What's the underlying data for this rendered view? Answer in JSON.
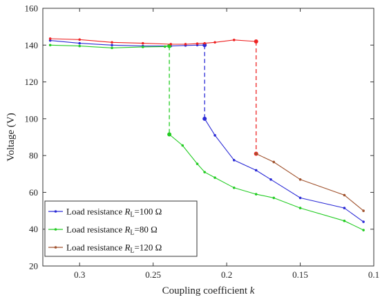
{
  "chart_data": {
    "type": "line",
    "xlabel_main": "Coupling coefficient",
    "xlabel_var": "k",
    "ylabel": "Voltage (V)",
    "xlim": [
      0.325,
      0.1
    ],
    "ylim": [
      20,
      160
    ],
    "x_ticks": [
      0.3,
      0.25,
      0.2,
      0.15,
      0.1
    ],
    "x_tick_labels": [
      "0.3",
      "0.25",
      "0.2",
      "0.15",
      "0.1"
    ],
    "y_ticks": [
      20,
      40,
      60,
      80,
      100,
      120,
      140,
      160
    ],
    "y_tick_labels": [
      "20",
      "40",
      "60",
      "80",
      "100",
      "120",
      "140",
      "160"
    ],
    "grid": false,
    "legend_placement": "bottom-left",
    "series": [
      {
        "name_prefix": "Load resistance ",
        "name_var": "R",
        "name_sub": "L",
        "name_suffix": "=100 Ω",
        "color": "#2b2bd6",
        "upper": {
          "x": [
            0.32,
            0.3,
            0.278,
            0.257,
            0.238,
            0.228,
            0.22,
            0.215
          ],
          "y": [
            142.5,
            141,
            140,
            139.5,
            139.5,
            139.8,
            140,
            140
          ]
        },
        "jump": {
          "x": 0.215,
          "y_from": 140,
          "y_to": 100
        },
        "lower": {
          "x": [
            0.215,
            0.208,
            0.195,
            0.18,
            0.17,
            0.15,
            0.12,
            0.107
          ],
          "y": [
            100,
            91,
            77.5,
            72,
            67,
            57,
            51.5,
            44
          ]
        }
      },
      {
        "name_prefix": "Load resistance ",
        "name_var": "R",
        "name_sub": "L",
        "name_suffix": "=80 Ω",
        "color": "#22cc22",
        "upper": {
          "x": [
            0.32,
            0.3,
            0.278,
            0.257,
            0.242,
            0.239
          ],
          "y": [
            140,
            139.5,
            138.5,
            139,
            139.2,
            139.5
          ]
        },
        "jump": {
          "x": 0.239,
          "y_from": 139.5,
          "y_to": 91.5
        },
        "lower": {
          "x": [
            0.239,
            0.23,
            0.22,
            0.215,
            0.208,
            0.195,
            0.18,
            0.168,
            0.15,
            0.12,
            0.107
          ],
          "y": [
            91.5,
            85.5,
            75.5,
            71,
            68,
            62.5,
            59,
            57,
            51.5,
            44.5,
            39.5
          ]
        }
      },
      {
        "name_prefix": "Load resistance ",
        "name_var": "R",
        "name_sub": "L",
        "name_suffix": "=120 Ω",
        "color": "#ee2222",
        "lower_color": "#a0522d",
        "upper": {
          "x": [
            0.32,
            0.3,
            0.278,
            0.257,
            0.238,
            0.228,
            0.22,
            0.215,
            0.208,
            0.195,
            0.18
          ],
          "y": [
            143.5,
            143,
            141.5,
            141,
            140.5,
            140.5,
            140.8,
            141,
            141.5,
            142.8,
            142
          ]
        },
        "jump": {
          "x": 0.18,
          "y_from": 142,
          "y_to": 81
        },
        "lower": {
          "x": [
            0.18,
            0.168,
            0.15,
            0.12,
            0.107
          ],
          "y": [
            81,
            76.5,
            67,
            58.5,
            50
          ]
        }
      }
    ]
  }
}
